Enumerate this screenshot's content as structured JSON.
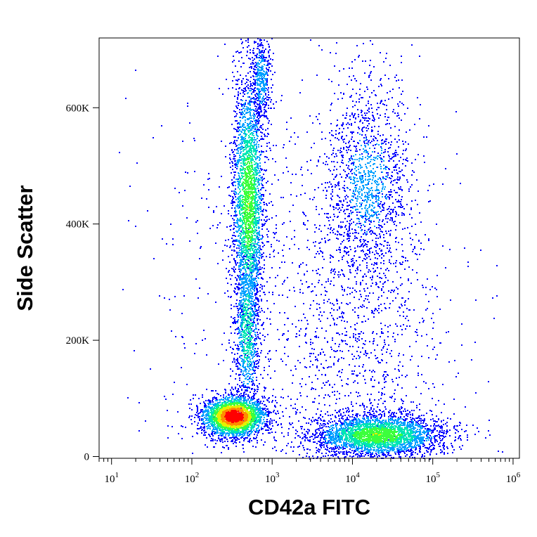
{
  "chart_data": {
    "type": "scatter",
    "style": "density-colored flow cytometry dot plot",
    "title": "",
    "xlabel": "CD42a FITC",
    "ylabel": "Side Scatter",
    "x_scale": "log",
    "xlim": [
      7,
      1200000
    ],
    "ylim": [
      -3000,
      720000
    ],
    "x_ticks": [
      {
        "value": 10,
        "base": "10",
        "exp": "1"
      },
      {
        "value": 100,
        "base": "10",
        "exp": "2"
      },
      {
        "value": 1000,
        "base": "10",
        "exp": "3"
      },
      {
        "value": 10000,
        "base": "10",
        "exp": "4"
      },
      {
        "value": 100000,
        "base": "10",
        "exp": "5"
      },
      {
        "value": 1000000,
        "base": "10",
        "exp": "6"
      }
    ],
    "y_ticks": [
      {
        "value": 0,
        "label": "0"
      },
      {
        "value": 200000,
        "label": "200K"
      },
      {
        "value": 400000,
        "label": "400K"
      },
      {
        "value": 600000,
        "label": "600K"
      }
    ],
    "density_colors": [
      "#0000ff",
      "#00a0ff",
      "#00e6b4",
      "#3cff3c",
      "#e6f000",
      "#ff8c00",
      "#ff0000"
    ],
    "populations": [
      {
        "x_center": 330,
        "y_center": 70000,
        "x_spread_decades": 0.2,
        "y_spread": 18000,
        "count": 2800,
        "peak_density": 1.0
      },
      {
        "x_center": 500,
        "y_center": 440000,
        "x_spread_decades": 0.1,
        "y_spread": 110000,
        "count": 2600,
        "peak_density": 0.55
      },
      {
        "x_center": 480,
        "y_center": 220000,
        "x_spread_decades": 0.08,
        "y_spread": 70000,
        "count": 900,
        "peak_density": 0.4
      },
      {
        "x_center": 720,
        "y_center": 650000,
        "x_spread_decades": 0.06,
        "y_spread": 40000,
        "count": 450,
        "peak_density": 0.25
      },
      {
        "x_center": 20000,
        "y_center": 38000,
        "x_spread_decades": 0.4,
        "y_spread": 18000,
        "count": 3200,
        "peak_density": 0.55
      },
      {
        "x_center": 15000,
        "y_center": 470000,
        "x_spread_decades": 0.27,
        "y_spread": 90000,
        "count": 1400,
        "peak_density": 0.2
      },
      {
        "x_center": 12000,
        "y_center": 200000,
        "x_spread_decades": 0.5,
        "y_spread": 140000,
        "count": 1000,
        "peak_density": 0.12
      },
      {
        "x_center": 1500,
        "y_center": 300000,
        "x_spread_decades": 0.9,
        "y_spread": 220000,
        "count": 700,
        "peak_density": 0.05
      }
    ]
  }
}
